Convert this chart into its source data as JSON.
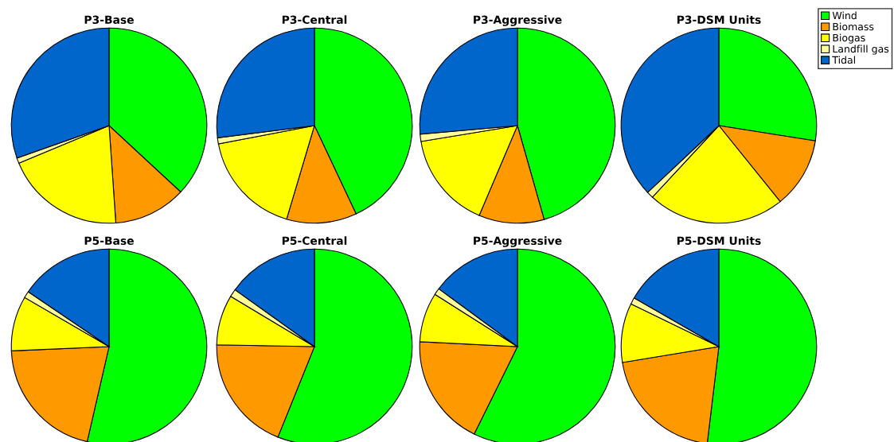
{
  "chart_data": [
    {
      "type": "pie",
      "title": "P3-Base",
      "categories": [
        "Wind",
        "Biomass",
        "Biogas",
        "Landfill gas",
        "Tidal"
      ],
      "values": [
        36.9,
        12,
        19.8,
        0.9,
        30.4
      ],
      "colors": [
        "#00ff00",
        "#ff9900",
        "#ffff00",
        "#ffff99",
        "#0066cc"
      ],
      "legend": "top right"
    },
    {
      "type": "pie",
      "title": "P3-Central",
      "values": [
        43,
        11.6,
        17.4,
        1,
        27
      ],
      "colors": [
        "#00ff00",
        "#ff9900",
        "#ffff00",
        "#ffff99",
        "#0066cc"
      ]
    },
    {
      "type": "pie",
      "title": "P3-Aggressive",
      "values": [
        45.6,
        10.8,
        16,
        1.2,
        26.4
      ],
      "colors": [
        "#00ff00",
        "#ff9900",
        "#ffff00",
        "#ffff99",
        "#0066cc"
      ]
    },
    {
      "type": "pie",
      "title": "P3-DSM Units",
      "values": [
        27.5,
        11.7,
        22.7,
        1.1,
        37
      ],
      "colors": [
        "#00ff00",
        "#ff9900",
        "#ffff00",
        "#ffff99",
        "#0066cc"
      ]
    },
    {
      "type": "pie",
      "title": "P5-Base",
      "values": [
        53.6,
        20.7,
        9.1,
        1.1,
        15.5
      ],
      "colors": [
        "#00ff00",
        "#ff9900",
        "#ffff00",
        "#ffff99",
        "#0066cc"
      ]
    },
    {
      "type": "pie",
      "title": "P5-Central",
      "values": [
        56.1,
        19.2,
        8.3,
        1.3,
        15.1
      ],
      "colors": [
        "#00ff00",
        "#ff9900",
        "#ffff00",
        "#ffff99",
        "#0066cc"
      ]
    },
    {
      "type": "pie",
      "title": "P5-Aggressive",
      "values": [
        57.3,
        18.5,
        8.2,
        1.1,
        14.9
      ],
      "colors": [
        "#00ff00",
        "#ff9900",
        "#ffff00",
        "#ffff99",
        "#0066cc"
      ]
    },
    {
      "type": "pie",
      "title": "P5-DSM Units",
      "values": [
        51.9,
        20.5,
        9.8,
        1.1,
        16.7
      ],
      "colors": [
        "#00ff00",
        "#ff9900",
        "#ffff00",
        "#ffff99",
        "#0066cc"
      ]
    }
  ]
}
